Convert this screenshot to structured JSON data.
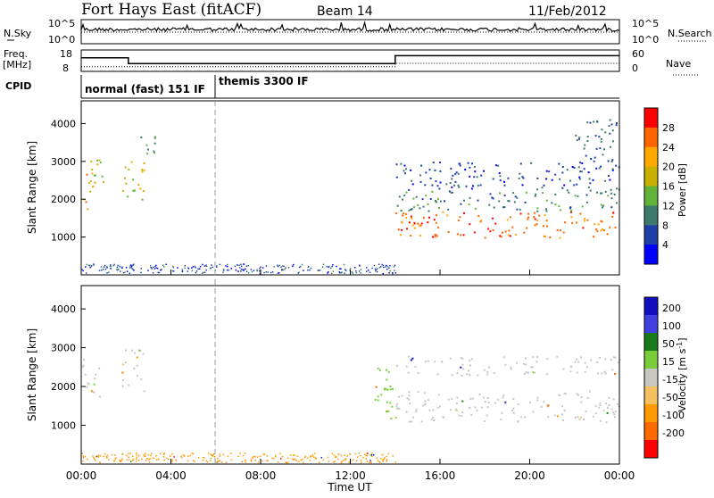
{
  "header": {
    "title": "Fort Hays East (fitACF)",
    "beam": "Beam 14",
    "date": "11/Feb/2012"
  },
  "status_panels": {
    "nsky_label": "N.Sky",
    "nsearch_label": "N.Search",
    "freq_label_1": "Freq.",
    "freq_label_2": "[MHz]",
    "nave_label": "Nave",
    "cpid_label": "CPID",
    "noise_left_ticks": [
      "10^5",
      "10^0"
    ],
    "noise_right_ticks": [
      "10^5",
      "10^0"
    ],
    "freq_left_ticks": [
      "18",
      "8"
    ],
    "freq_right_ticks": [
      "60",
      "0"
    ],
    "cpid_segments": [
      {
        "label": "normal (fast) 151 IF",
        "start_hour": 0
      },
      {
        "label": "themis 3300 IF",
        "start_hour": 6
      }
    ],
    "freq_profile_mhz": [
      [
        0,
        15
      ],
      [
        2.1,
        15
      ],
      [
        2.1,
        11
      ],
      [
        14,
        11
      ],
      [
        14,
        16.5
      ],
      [
        24,
        16.5
      ]
    ],
    "nave_profile": [
      [
        0,
        16
      ],
      [
        14,
        16
      ],
      [
        14,
        27
      ],
      [
        24,
        27
      ]
    ]
  },
  "chart_data": [
    {
      "type": "heatmap",
      "name": "power",
      "ylabel": "Slant Range [km]",
      "yticks": [
        1000,
        2000,
        3000,
        4000
      ],
      "ylim": [
        0,
        4600
      ],
      "xlim": [
        0,
        24
      ],
      "colorbar": {
        "label": "Power [dB]",
        "ticks": [
          "4",
          "8",
          "12",
          "16",
          "20",
          "24",
          "28"
        ],
        "colors": [
          "#0000ff",
          "#1f3fa8",
          "#3d7a6b",
          "#62b33a",
          "#c9b000",
          "#ffa800",
          "#ff6600",
          "#ff0000"
        ]
      },
      "features": [
        {
          "hours": [
            0,
            0.5
          ],
          "range_km": [
            1600,
            2800
          ],
          "level_db": 22
        },
        {
          "hours": [
            0.2,
            1.1
          ],
          "range_km": [
            2400,
            3100
          ],
          "level_db": 16
        },
        {
          "hours": [
            1.8,
            2.8
          ],
          "range_km": [
            2000,
            3100
          ],
          "level_db": 18
        },
        {
          "hours": [
            2.6,
            3.7
          ],
          "range_km": [
            3200,
            3700
          ],
          "level_db": 12
        },
        {
          "hours": [
            14,
            24
          ],
          "range_km": [
            1000,
            1700
          ],
          "level_db": 26
        },
        {
          "hours": [
            14,
            24
          ],
          "range_km": [
            1700,
            2300
          ],
          "level_db": 10
        },
        {
          "hours": [
            14,
            24
          ],
          "range_km": [
            2300,
            3000
          ],
          "level_db": 6
        },
        {
          "hours": [
            22,
            24
          ],
          "range_km": [
            3000,
            4200
          ],
          "level_db": 8
        }
      ]
    },
    {
      "type": "heatmap",
      "name": "velocity",
      "ylabel": "Slant Range [km]",
      "yticks": [
        1000,
        2000,
        3000,
        4000
      ],
      "ylim": [
        0,
        4600
      ],
      "xlim": [
        0,
        24
      ],
      "xticks": [
        "00:00",
        "04:00",
        "08:00",
        "12:00",
        "16:00",
        "20:00",
        "00:00"
      ],
      "xlabel": "Time UT",
      "colorbar": {
        "label": "Velocity [m s^-1]",
        "ticks": [
          "200",
          "100",
          "50",
          "15",
          "-15",
          "-50",
          "-100",
          "-200"
        ],
        "colors": [
          "#1010c0",
          "#4040e0",
          "#1a7a1a",
          "#7acc3a",
          "#c8c8c0",
          "#f5c060",
          "#ff9900",
          "#ff6a00",
          "#ff0000"
        ]
      },
      "features": [
        {
          "hours": [
            0,
            0.8
          ],
          "range_km": [
            1700,
            2800
          ],
          "velocity": 0
        },
        {
          "hours": [
            1.8,
            2.8
          ],
          "range_km": [
            1900,
            3000
          ],
          "velocity": 0
        },
        {
          "hours": [
            13,
            14
          ],
          "range_km": [
            1000,
            2500
          ],
          "velocity": 40
        },
        {
          "hours": [
            14,
            24
          ],
          "range_km": [
            1100,
            1900
          ],
          "velocity": 0
        },
        {
          "hours": [
            14,
            24
          ],
          "range_km": [
            2300,
            2800
          ],
          "velocity": 0
        }
      ]
    }
  ]
}
